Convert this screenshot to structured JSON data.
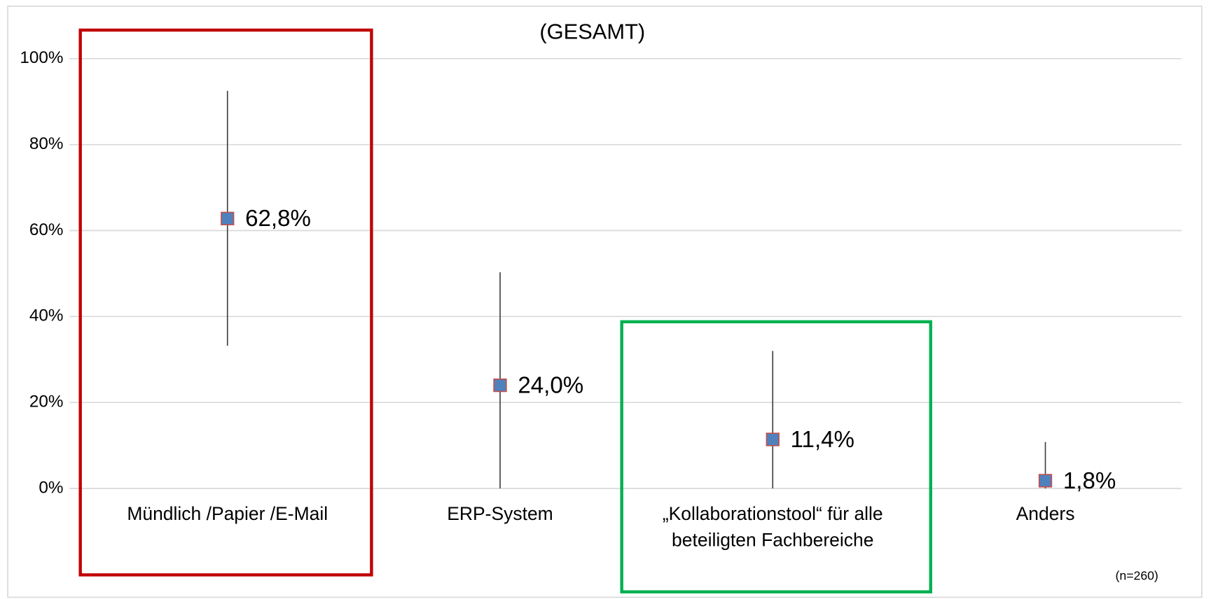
{
  "chart_data": {
    "type": "errorbar",
    "title": "(GESAMT)",
    "note": "(n=260)",
    "categories": [
      "Mündlich /Papier /E-Mail",
      "ERP-System",
      "„Kollaborationstool“ für alle\nbeteiligten Fachbereiche",
      "Anders"
    ],
    "series": [
      {
        "color": "#4f81bd",
        "edge_color": "#c0504d",
        "values": [
          62.8,
          24.0,
          11.4,
          1.8
        ],
        "value_labels": [
          "62,8%",
          "24,0%",
          "11,4%",
          "1,8%"
        ],
        "high": [
          92.5,
          50.3,
          32.0,
          10.8
        ],
        "low": [
          33.2,
          0,
          0,
          0
        ]
      }
    ],
    "ylim": [
      0,
      100
    ],
    "yticks": [
      {
        "value": 0,
        "label": "0%"
      },
      {
        "value": 20,
        "label": "20%"
      },
      {
        "value": 40,
        "label": "40%"
      },
      {
        "value": 60,
        "label": "60%"
      },
      {
        "value": 80,
        "label": "80%"
      },
      {
        "value": 100,
        "label": "100%"
      }
    ],
    "grid": true
  }
}
